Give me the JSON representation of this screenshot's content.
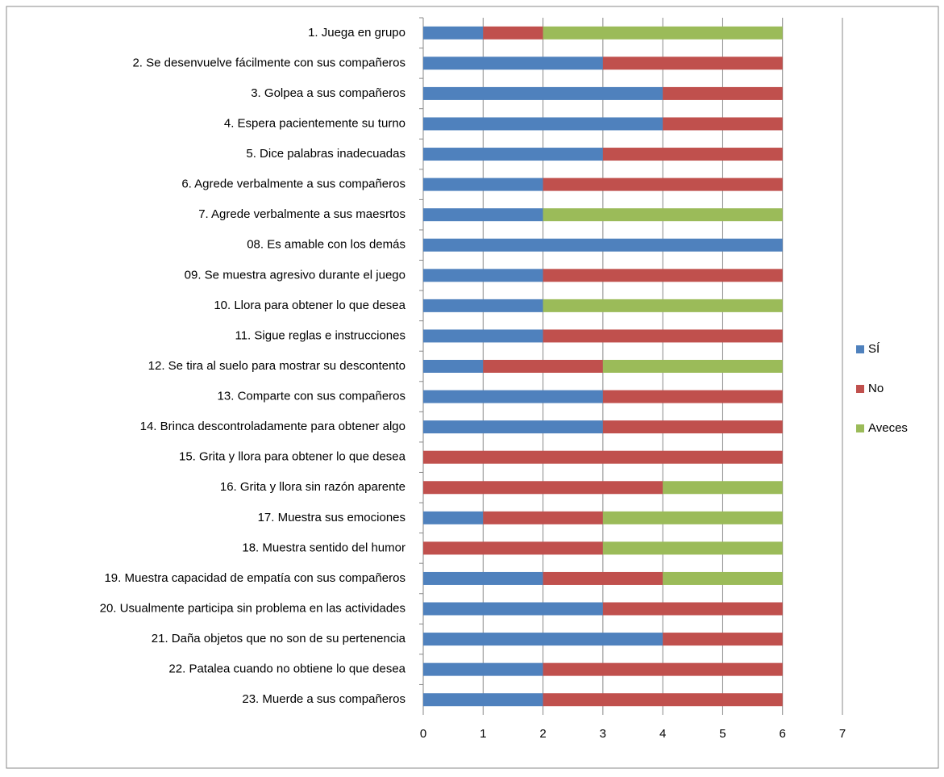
{
  "chart_data": {
    "type": "stacked_barh",
    "categories": [
      "1. Juega en grupo",
      "2. Se desenvuelve fácilmente con sus compañeros",
      "3. Golpea a sus compañeros",
      "4. Espera pacientemente su turno",
      "5. Dice palabras inadecuadas",
      "6. Agrede verbalmente a sus compañeros",
      "7. Agrede verbalmente a sus maesrtos",
      "08. Es amable con los demás",
      "09. Se muestra agresivo durante el juego",
      "10. Llora para obtener lo que desea",
      "11. Sigue reglas e instrucciones",
      "12. Se tira al suelo para mostrar su descontento",
      "13. Comparte con sus compañeros",
      "14. Brinca descontroladamente para obtener algo",
      "15. Grita y llora para obtener lo que desea",
      "16. Grita y llora sin razón aparente",
      "17. Muestra sus emociones",
      "18. Muestra sentido del humor",
      "19. Muestra capacidad de empatía con sus compañeros",
      "20. Usualmente participa sin problema en las actividades",
      "21. Daña objetos que no son de su pertenencia",
      "22. Patalea cuando no obtiene lo que desea",
      "23. Muerde a sus compañeros"
    ],
    "series": [
      {
        "name": "SÍ",
        "color": "#4f81bd",
        "values": [
          1,
          3,
          4,
          4,
          3,
          2,
          2,
          6,
          2,
          2,
          2,
          1,
          3,
          3,
          0,
          0,
          1,
          0,
          2,
          3,
          4,
          2,
          2
        ]
      },
      {
        "name": "No",
        "color": "#c0504d",
        "values": [
          1,
          3,
          2,
          2,
          3,
          4,
          0,
          0,
          4,
          0,
          4,
          2,
          3,
          3,
          6,
          4,
          2,
          3,
          2,
          3,
          2,
          4,
          4
        ]
      },
      {
        "name": "Aveces",
        "color": "#9bbb59",
        "values": [
          4,
          0,
          0,
          0,
          0,
          0,
          4,
          0,
          0,
          4,
          0,
          3,
          0,
          0,
          0,
          2,
          3,
          3,
          2,
          0,
          0,
          0,
          0
        ]
      }
    ],
    "xlim": [
      0,
      7
    ],
    "xticks": [
      0,
      1,
      2,
      3,
      4,
      5,
      6,
      7
    ],
    "grid": true,
    "legend": "right"
  }
}
